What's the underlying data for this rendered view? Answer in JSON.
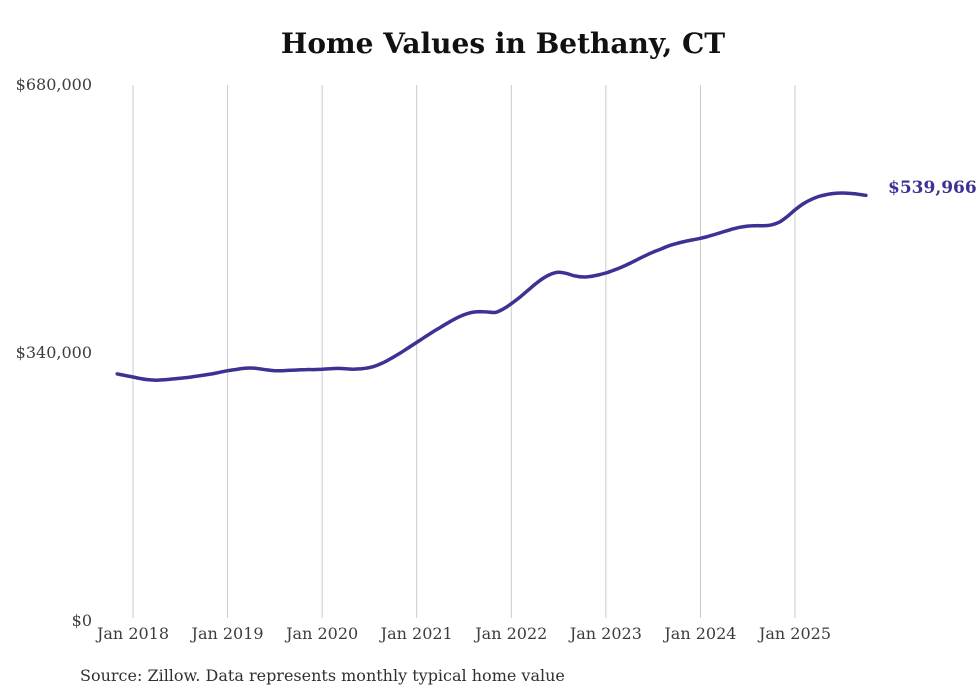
{
  "page": {
    "title": "Home Values in Bethany, CT",
    "end_label": "$539,966",
    "source_note": "Source: Zillow. Data represents monthly typical home value"
  },
  "colors": {
    "line": "#3c3293",
    "grid": "#cbcbcb",
    "tick_text": "#3d3d3d",
    "title_text": "#111111",
    "source_text": "#303030",
    "background": "#ffffff"
  },
  "chart_data": {
    "type": "line",
    "title": "Home Values in Bethany, CT",
    "xlabel": "",
    "ylabel": "",
    "ylim": [
      0,
      680000
    ],
    "grid": "vertical-only",
    "legend": "none",
    "end_annotation": "$539,966",
    "y_ticks": [
      {
        "label": "$680,000",
        "value": 680000
      },
      {
        "label": "$340,000",
        "value": 340000
      },
      {
        "label": "$0",
        "value": 0
      }
    ],
    "x_tick_labels": [
      "Jan 2018",
      "Jan 2019",
      "Jan 2020",
      "Jan 2021",
      "Jan 2022",
      "Jan 2023",
      "Jan 2024",
      "Jan 2025"
    ],
    "series": [
      {
        "name": "Monthly typical home value",
        "months": [
          "2017-11",
          "2017-12",
          "2018-01",
          "2018-02",
          "2018-03",
          "2018-04",
          "2018-05",
          "2018-06",
          "2018-07",
          "2018-08",
          "2018-09",
          "2018-10",
          "2018-11",
          "2018-12",
          "2019-01",
          "2019-02",
          "2019-03",
          "2019-04",
          "2019-05",
          "2019-06",
          "2019-07",
          "2019-08",
          "2019-09",
          "2019-10",
          "2019-11",
          "2019-12",
          "2020-01",
          "2020-02",
          "2020-03",
          "2020-04",
          "2020-05",
          "2020-06",
          "2020-07",
          "2020-08",
          "2020-09",
          "2020-10",
          "2020-11",
          "2020-12",
          "2021-01",
          "2021-02",
          "2021-03",
          "2021-04",
          "2021-05",
          "2021-06",
          "2021-07",
          "2021-08",
          "2021-09",
          "2021-10",
          "2021-11",
          "2021-12",
          "2022-01",
          "2022-02",
          "2022-03",
          "2022-04",
          "2022-05",
          "2022-06",
          "2022-07",
          "2022-08",
          "2022-09",
          "2022-10",
          "2022-11",
          "2022-12",
          "2023-01",
          "2023-02",
          "2023-03",
          "2023-04",
          "2023-05",
          "2023-06",
          "2023-07",
          "2023-08",
          "2023-09",
          "2023-10",
          "2023-11",
          "2023-12",
          "2024-01",
          "2024-02",
          "2024-03",
          "2024-04",
          "2024-05",
          "2024-06",
          "2024-07",
          "2024-08",
          "2024-09",
          "2024-10",
          "2024-11",
          "2024-12",
          "2025-01",
          "2025-02",
          "2025-03",
          "2025-04",
          "2025-05",
          "2025-06",
          "2025-07",
          "2025-08",
          "2025-09",
          "2025-10"
        ],
        "values": [
          313500,
          311500,
          309500,
          307500,
          306000,
          305500,
          306000,
          307000,
          308000,
          309000,
          310500,
          312000,
          313500,
          315500,
          317500,
          319000,
          320500,
          321000,
          320000,
          318500,
          317500,
          317500,
          318000,
          318500,
          319000,
          319000,
          319500,
          320000,
          320500,
          320000,
          319500,
          320000,
          321500,
          324500,
          329000,
          334500,
          340500,
          347000,
          353500,
          360000,
          366500,
          372500,
          378500,
          384000,
          388500,
          391500,
          392500,
          392000,
          391500,
          396000,
          402500,
          410000,
          418500,
          427000,
          434500,
          440000,
          442500,
          441000,
          438000,
          436500,
          437000,
          439000,
          441500,
          445000,
          449000,
          453500,
          458500,
          463500,
          468000,
          472000,
          476000,
          479000,
          481500,
          483500,
          485500,
          488000,
          491000,
          494000,
          497000,
          499500,
          501000,
          501500,
          501500,
          502500,
          506000,
          513000,
          521500,
          529000,
          534500,
          538500,
          541000,
          542500,
          543000,
          542500,
          541500,
          539966
        ]
      }
    ]
  }
}
